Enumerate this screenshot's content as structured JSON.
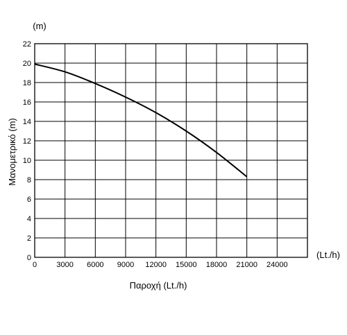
{
  "chart_data": {
    "type": "line",
    "title": "",
    "xlabel": "Παροχή (Lt./h)",
    "ylabel": "Μανομετρικό  (m)",
    "x_unit": "(Lt./h)",
    "y_unit": "(m)",
    "xlim": [
      0,
      27000
    ],
    "ylim": [
      0,
      22
    ],
    "x_ticks": [
      0,
      3000,
      6000,
      9000,
      12000,
      15000,
      18000,
      21000,
      24000
    ],
    "y_ticks": [
      0,
      2,
      4,
      6,
      8,
      10,
      12,
      14,
      16,
      18,
      20,
      22
    ],
    "grid": true,
    "legend": "none",
    "series": [
      {
        "x": [
          0,
          3000,
          6000,
          9000,
          12000,
          15000,
          18000,
          21000
        ],
        "y": [
          19.9,
          19.1,
          17.9,
          16.5,
          14.9,
          13.0,
          10.8,
          8.3
        ],
        "color": "#000000"
      }
    ]
  }
}
